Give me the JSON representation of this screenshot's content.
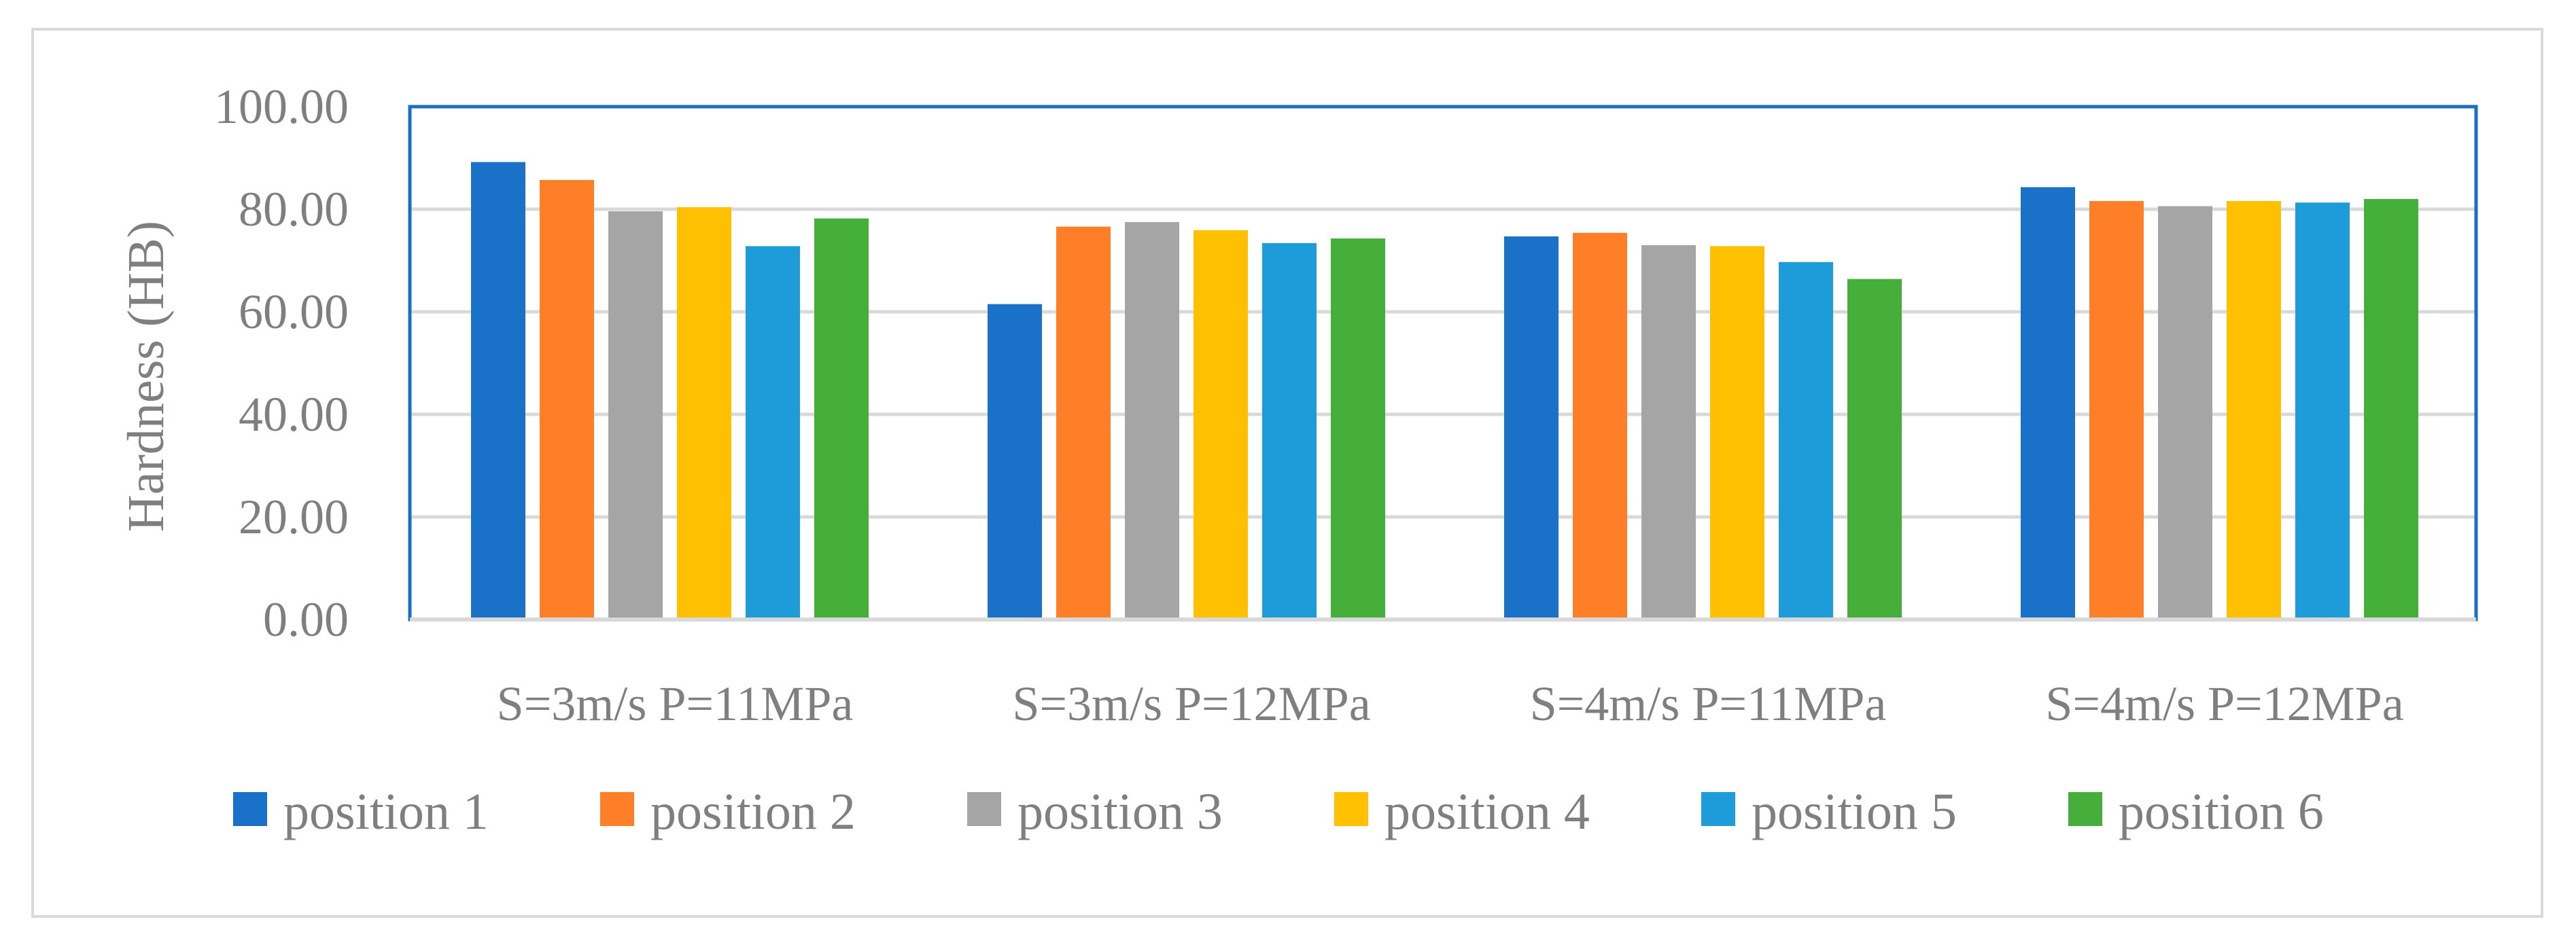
{
  "chart_data": {
    "type": "bar",
    "title": "",
    "xlabel": "",
    "ylabel": "Hardness (HB)",
    "ylim": [
      0,
      100
    ],
    "yticks": [
      "0.00",
      "20.00",
      "40.00",
      "60.00",
      "80.00",
      "100.00"
    ],
    "grid": true,
    "legend_position": "bottom",
    "categories": [
      "S=3m/s P=11MPa",
      "S=3m/s P=12MPa",
      "S=4m/s P=11MPa",
      "S=4m/s P=12MPa"
    ],
    "series": [
      {
        "name": "position 1",
        "color": "#1a72c8",
        "values": [
          89.2,
          61.5,
          74.7,
          84.3
        ]
      },
      {
        "name": "position 2",
        "color": "#fe7f27",
        "values": [
          85.7,
          76.6,
          75.4,
          81.6
        ]
      },
      {
        "name": "position 3",
        "color": "#a5a5a5",
        "values": [
          79.6,
          77.5,
          73.0,
          80.6
        ]
      },
      {
        "name": "position 4",
        "color": "#fec000",
        "values": [
          80.4,
          75.9,
          72.8,
          81.6
        ]
      },
      {
        "name": "position 5",
        "color": "#1e9cda",
        "values": [
          72.8,
          73.4,
          69.7,
          81.3
        ]
      },
      {
        "name": "position 6",
        "color": "#46ae3b",
        "values": [
          78.2,
          74.3,
          66.4,
          82.0
        ]
      }
    ],
    "colors": {
      "grid": "#d9d9d9",
      "plot_border": "#1a6fc4",
      "text": "#7f7f7f"
    }
  }
}
